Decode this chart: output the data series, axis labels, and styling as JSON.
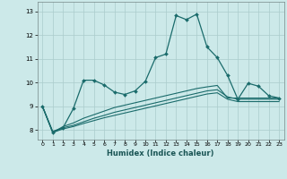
{
  "xlabel": "Humidex (Indice chaleur)",
  "background_color": "#cce9e9",
  "grid_color": "#aacccc",
  "line_color": "#1a6b6b",
  "xlim": [
    -0.5,
    23.5
  ],
  "ylim": [
    7.6,
    13.4
  ],
  "yticks": [
    8,
    9,
    10,
    11,
    12,
    13
  ],
  "xticks": [
    0,
    1,
    2,
    3,
    4,
    5,
    6,
    7,
    8,
    9,
    10,
    11,
    12,
    13,
    14,
    15,
    16,
    17,
    18,
    19,
    20,
    21,
    22,
    23
  ],
  "line1_x": [
    0,
    1,
    2,
    3,
    4,
    5,
    6,
    7,
    8,
    9,
    10,
    11,
    12,
    13,
    14,
    15,
    16,
    17,
    18,
    19,
    20,
    21,
    22,
    23
  ],
  "line1_y": [
    9.0,
    7.9,
    8.1,
    8.9,
    10.1,
    10.1,
    9.9,
    9.6,
    9.5,
    9.65,
    10.05,
    11.05,
    11.2,
    12.82,
    12.65,
    12.88,
    11.5,
    11.05,
    10.3,
    9.3,
    9.97,
    9.85,
    9.45,
    9.35
  ],
  "line2_x": [
    0,
    1,
    2,
    3,
    4,
    5,
    6,
    7,
    8,
    9,
    10,
    11,
    12,
    13,
    14,
    15,
    16,
    17,
    18,
    19,
    20,
    21,
    22,
    23
  ],
  "line2_y": [
    9.0,
    7.9,
    8.15,
    8.3,
    8.5,
    8.65,
    8.8,
    8.95,
    9.05,
    9.15,
    9.25,
    9.35,
    9.45,
    9.55,
    9.65,
    9.75,
    9.82,
    9.88,
    9.35,
    9.35,
    9.35,
    9.35,
    9.35,
    9.35
  ],
  "line3_x": [
    0,
    1,
    2,
    3,
    4,
    5,
    6,
    7,
    8,
    9,
    10,
    11,
    12,
    13,
    14,
    15,
    16,
    17,
    18,
    19,
    20,
    21,
    22,
    23
  ],
  "line3_y": [
    9.0,
    7.95,
    8.1,
    8.2,
    8.35,
    8.5,
    8.62,
    8.75,
    8.85,
    8.95,
    9.05,
    9.15,
    9.25,
    9.35,
    9.45,
    9.55,
    9.65,
    9.7,
    9.4,
    9.3,
    9.3,
    9.3,
    9.3,
    9.3
  ],
  "line4_x": [
    0,
    1,
    2,
    3,
    4,
    5,
    6,
    7,
    8,
    9,
    10,
    11,
    12,
    13,
    14,
    15,
    16,
    17,
    18,
    19,
    20,
    21,
    22,
    23
  ],
  "line4_y": [
    9.0,
    7.9,
    8.05,
    8.15,
    8.28,
    8.4,
    8.52,
    8.62,
    8.72,
    8.82,
    8.92,
    9.02,
    9.12,
    9.22,
    9.32,
    9.42,
    9.52,
    9.57,
    9.3,
    9.2,
    9.2,
    9.2,
    9.2,
    9.2
  ]
}
